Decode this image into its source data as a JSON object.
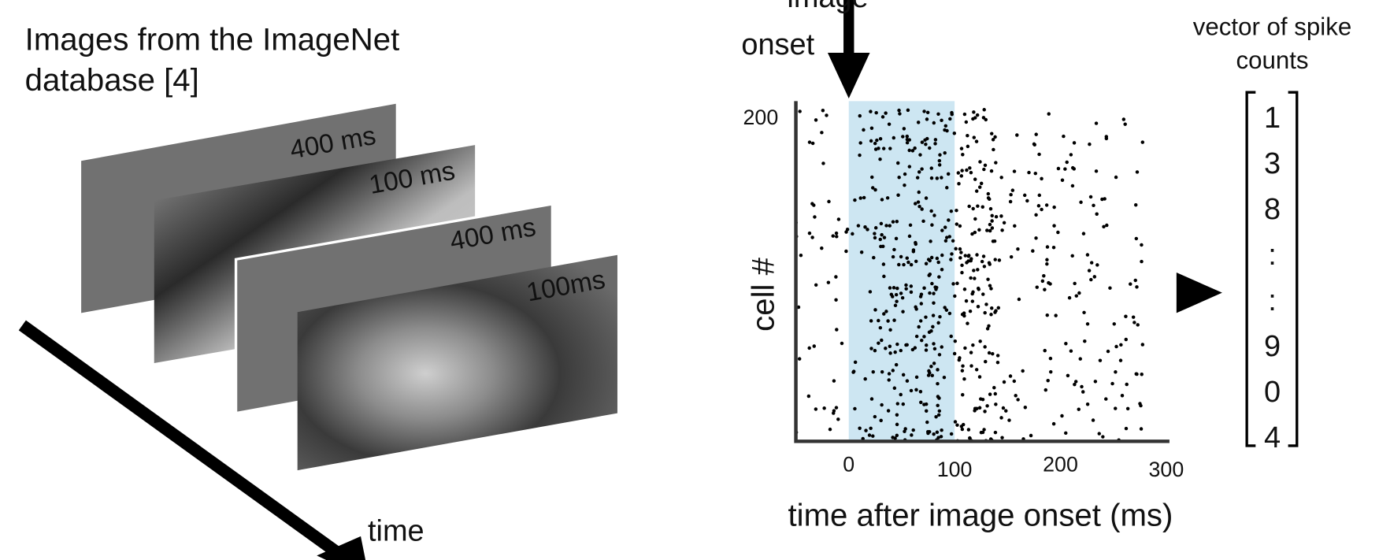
{
  "images": {
    "caption": [
      "Images from the ImageNet",
      "database [4]"
    ],
    "frames": [
      "400 ms",
      "100 ms",
      "400 ms",
      "100ms"
    ],
    "time_label": "time"
  },
  "raster": {
    "arrow_label": [
      "image",
      "onset"
    ],
    "ylabel": "cell #",
    "xlabel": "time after image onset (ms)",
    "xticks": [
      0,
      100,
      200,
      300
    ],
    "yticks": [
      200
    ],
    "xlim": [
      -50,
      303
    ],
    "ylim": [
      0,
      210
    ],
    "stimulus_window": [
      0,
      100
    ]
  },
  "vector": {
    "title": [
      "vector of spike",
      "counts"
    ],
    "entries": [
      "1",
      "3",
      "8",
      ":",
      ":",
      "9",
      "0",
      "4"
    ]
  }
}
